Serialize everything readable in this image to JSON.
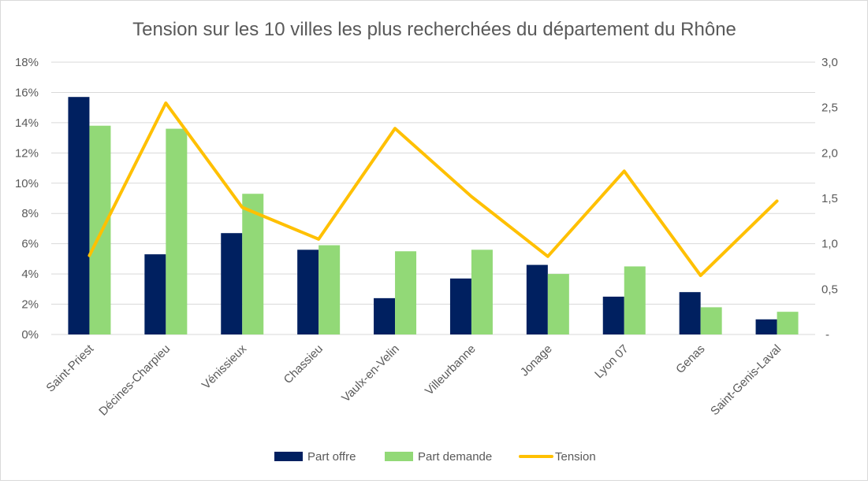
{
  "chart_data": {
    "type": "bar+line",
    "title": "Tension sur les 10 villes les plus recherchées du département du Rhône",
    "categories": [
      "Saint-Priest",
      "Décines-Charpieu",
      "Vénissieux",
      "Chassieu",
      "Vaulx-en-Velin",
      "Villeurbanne",
      "Jonage",
      "Lyon 07",
      "Genas",
      "Saint-Genis-Laval"
    ],
    "series": [
      {
        "name": "Part offre",
        "type": "bar",
        "axis": "left",
        "color": "#002060",
        "values": [
          15.7,
          5.3,
          6.7,
          5.6,
          2.4,
          3.7,
          4.6,
          2.5,
          2.8,
          1.0
        ]
      },
      {
        "name": "Part demande",
        "type": "bar",
        "axis": "left",
        "color": "#92D977",
        "values": [
          13.8,
          13.6,
          9.3,
          5.9,
          5.5,
          5.6,
          4.0,
          4.5,
          1.8,
          1.5
        ]
      },
      {
        "name": "Tension",
        "type": "line",
        "axis": "right",
        "color": "#FFC000",
        "values": [
          0.87,
          2.55,
          1.4,
          1.05,
          2.27,
          1.52,
          0.86,
          1.8,
          0.65,
          1.47
        ]
      }
    ],
    "y_left": {
      "min": 0,
      "max": 18,
      "step": 2,
      "tick_labels": [
        "0%",
        "2%",
        "4%",
        "6%",
        "8%",
        "10%",
        "12%",
        "14%",
        "16%",
        "18%"
      ]
    },
    "y_right": {
      "min": 0,
      "max": 3,
      "step": 0.5,
      "tick_labels": [
        "-",
        "0,5",
        "1,0",
        "1,5",
        "2,0",
        "2,5",
        "3,0"
      ]
    },
    "grid": true,
    "legend_position": "bottom"
  }
}
